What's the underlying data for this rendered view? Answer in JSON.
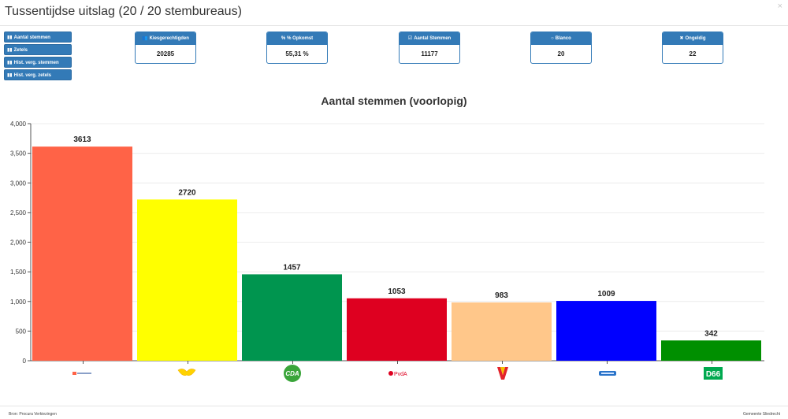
{
  "page": {
    "title": "Tussentijdse uitslag (20 / 20 stembureaus)",
    "close_icon": "×"
  },
  "side_buttons": [
    {
      "label": "Aantal stemmen",
      "icon": "bar-chart-icon"
    },
    {
      "label": "Zetels",
      "icon": "bar-chart-icon"
    },
    {
      "label": "Hist. verg. stemmen",
      "icon": "bar-chart-icon"
    },
    {
      "label": "Hist. verg. zetels",
      "icon": "bar-chart-icon"
    }
  ],
  "stats": [
    {
      "label": "Kiesgerechtigden",
      "value": "20285",
      "icon": "users-icon",
      "glyph": "👥"
    },
    {
      "label": "% Opkomst",
      "value": "55,31 %",
      "icon": "percent-icon",
      "glyph": "%"
    },
    {
      "label": "Aantal Stemmen",
      "value": "11177",
      "icon": "check-square-icon",
      "glyph": "☑"
    },
    {
      "label": "Blanco",
      "value": "20",
      "icon": "circle-icon",
      "glyph": "○"
    },
    {
      "label": "Ongeldig",
      "value": "22",
      "icon": "times-icon",
      "glyph": "✖"
    }
  ],
  "chart_data": {
    "type": "bar",
    "title": "Aantal stemmen (voorlopig)",
    "xlabel": "",
    "ylabel": "",
    "ylim": [
      0,
      4000
    ],
    "yticks": [
      "0",
      "500",
      "1,000",
      "1,500",
      "2,000",
      "2,500",
      "3,000",
      "3,500",
      "4,000"
    ],
    "grid": true,
    "legend": "none",
    "categories": [
      "party-logo-1",
      "party-logo-2",
      "CDA",
      "PvdA",
      "party-logo-5",
      "party-logo-6",
      "D66"
    ],
    "values": [
      3613,
      2720,
      1457,
      1053,
      983,
      1009,
      342
    ],
    "colors": [
      "#ff6347",
      "#ffff00",
      "#00954f",
      "#de0020",
      "#ffc78a",
      "#0000ff",
      "#008f00"
    ]
  },
  "footer": {
    "source": "Bron: Procura Verkiezingen",
    "owner": "Gemeente Sliedrecht"
  }
}
